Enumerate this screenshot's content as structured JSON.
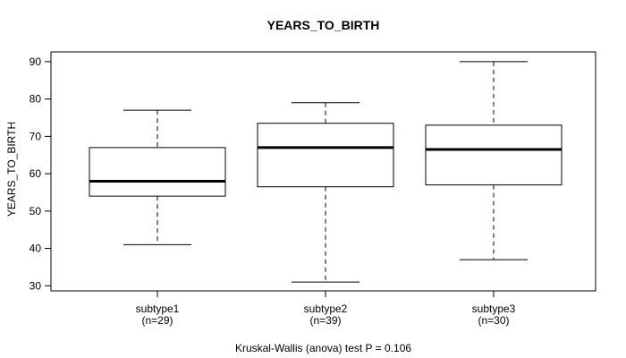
{
  "chart_data": {
    "type": "boxplot",
    "title": "YEARS_TO_BIRTH",
    "ylabel": "YEARS_TO_BIRTH",
    "caption": "Kruskal-Wallis (anova) test P = 0.106",
    "p_value": "0.106",
    "ylim": [
      30,
      90
    ],
    "yticks": [
      30,
      40,
      50,
      60,
      70,
      80,
      90
    ],
    "grid": false,
    "legend": "none",
    "categories": [
      "subtype1",
      "subtype2",
      "subtype3"
    ],
    "category_sublabels": [
      "(n=29)",
      "(n=39)",
      "(n=30)"
    ],
    "series": [
      {
        "name": "subtype1",
        "n": 29,
        "whisker_low": 41,
        "q1": 54,
        "median": 58,
        "q3": 67,
        "whisker_high": 77
      },
      {
        "name": "subtype2",
        "n": 39,
        "whisker_low": 31,
        "q1": 56.5,
        "median": 67,
        "q3": 73.5,
        "whisker_high": 79
      },
      {
        "name": "subtype3",
        "n": 30,
        "whisker_low": 37,
        "q1": 57,
        "median": 66.5,
        "q3": 73,
        "whisker_high": 90
      }
    ],
    "colors": {
      "line": "#000000",
      "box_fill": "#ffffff",
      "background": "#ffffff"
    }
  }
}
